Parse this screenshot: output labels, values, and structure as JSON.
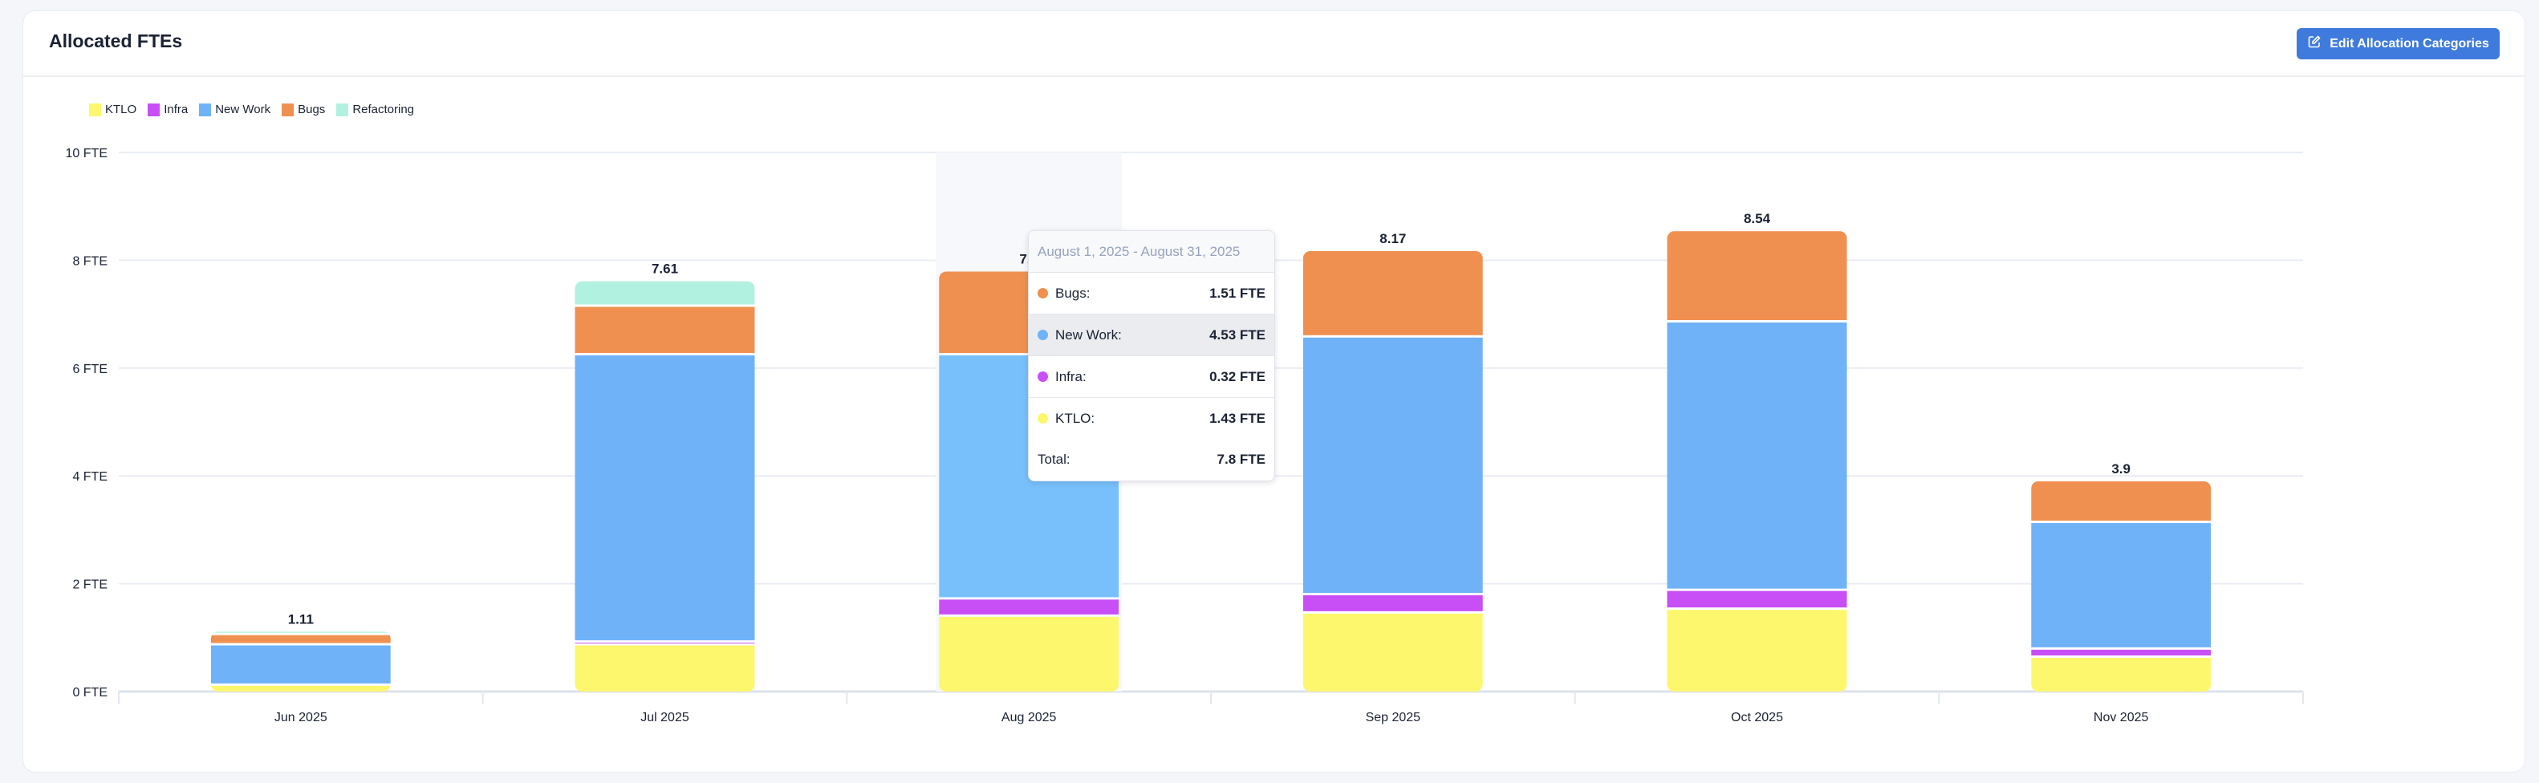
{
  "header": {
    "title": "Allocated FTEs",
    "edit_button_label": "Edit Allocation Categories",
    "edit_icon": "edit-icon"
  },
  "colors": {
    "KTLO": "#fdf76d",
    "Infra": "#c84ff5",
    "New Work": "#6fb2f7",
    "Bugs": "#f09050",
    "Refactoring": "#b1f1e0",
    "New Work hover": "#78c0fc",
    "accent": "#3f7bdc"
  },
  "chart_data": {
    "type": "bar",
    "stacked": true,
    "title": "Allocated FTEs",
    "xlabel": "",
    "ylabel": "",
    "ylim": [
      0,
      10
    ],
    "yticks": [
      0,
      2,
      4,
      6,
      8,
      10
    ],
    "ytick_suffix": " FTE",
    "grid": true,
    "legend_position": "top-left",
    "categories": [
      "Jun 2025",
      "Jul 2025",
      "Aug 2025",
      "Sep 2025",
      "Oct 2025",
      "Nov 2025"
    ],
    "series": [
      {
        "name": "KTLO",
        "values": [
          0.15,
          0.9,
          1.43,
          1.49,
          1.56,
          0.67
        ]
      },
      {
        "name": "Infra",
        "values": [
          0,
          0.05,
          0.32,
          0.34,
          0.35,
          0.15
        ]
      },
      {
        "name": "New Work",
        "values": [
          0.75,
          5.33,
          4.53,
          4.78,
          4.98,
          2.35
        ]
      },
      {
        "name": "Bugs",
        "values": [
          0.19,
          0.9,
          1.51,
          1.56,
          1.65,
          0.73
        ]
      },
      {
        "name": "Refactoring",
        "values": [
          0.02,
          0.43,
          0,
          0,
          0,
          0
        ]
      }
    ],
    "totals": [
      "1.11",
      "7.61",
      "7.8",
      "8.17",
      "8.54",
      "3.9"
    ],
    "hovered_category": "Aug 2025"
  },
  "tooltip": {
    "date_range": "August 1, 2025 - August 31, 2025",
    "rows": [
      {
        "label": "Bugs:",
        "value": "1.51 FTE",
        "series": "Bugs"
      },
      {
        "label": "New Work:",
        "value": "4.53 FTE",
        "series": "New Work"
      },
      {
        "label": "Infra:",
        "value": "0.32 FTE",
        "series": "Infra"
      },
      {
        "label": "KTLO:",
        "value": "1.43 FTE",
        "series": "KTLO"
      }
    ],
    "total_label": "Total:",
    "total_value": "7.8 FTE"
  }
}
